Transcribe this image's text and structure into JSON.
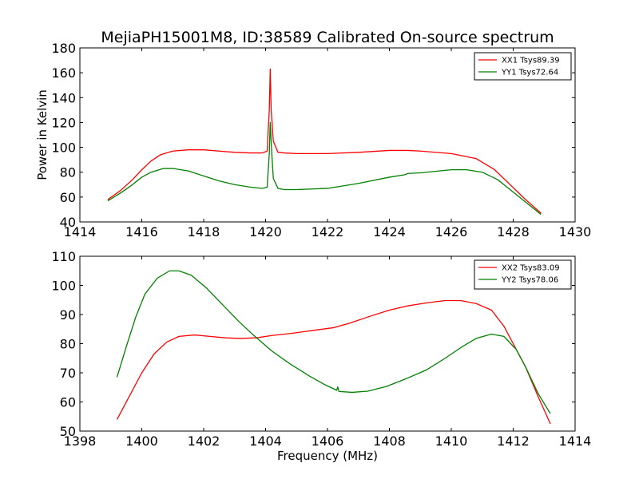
{
  "chart_data": [
    {
      "type": "line",
      "title": "MejiaPH15001M8, ID:38589 Calibrated On-source spectrum",
      "xlabel": "",
      "ylabel": "Power in Kelvin",
      "xlim": [
        1414,
        1430
      ],
      "ylim": [
        40,
        180
      ],
      "xticks": [
        "1414",
        "1416",
        "1418",
        "1420",
        "1422",
        "1424",
        "1426",
        "1428",
        "1430"
      ],
      "yticks": [
        "40",
        "60",
        "80",
        "100",
        "120",
        "140",
        "160",
        "180"
      ],
      "grid": false,
      "legend_position": "top-right",
      "series": [
        {
          "name": "XX1 Tsys89.39",
          "color": "#ff0000",
          "points": [
            [
              1414.9,
              58
            ],
            [
              1415.3,
              65
            ],
            [
              1415.7,
              74
            ],
            [
              1416.0,
              82
            ],
            [
              1416.3,
              89
            ],
            [
              1416.6,
              94
            ],
            [
              1417.0,
              97
            ],
            [
              1417.5,
              98
            ],
            [
              1418.0,
              98
            ],
            [
              1418.5,
              97
            ],
            [
              1419.0,
              96
            ],
            [
              1419.5,
              95.5
            ],
            [
              1419.9,
              95.5
            ],
            [
              1420.05,
              97
            ],
            [
              1420.12,
              130
            ],
            [
              1420.15,
              163
            ],
            [
              1420.18,
              130
            ],
            [
              1420.25,
              105
            ],
            [
              1420.4,
              96
            ],
            [
              1420.6,
              95.5
            ],
            [
              1421.0,
              95
            ],
            [
              1422.0,
              95
            ],
            [
              1423.0,
              96
            ],
            [
              1424.0,
              97.5
            ],
            [
              1424.6,
              97.5
            ],
            [
              1425.0,
              97
            ],
            [
              1426.0,
              95
            ],
            [
              1426.8,
              91
            ],
            [
              1427.4,
              82
            ],
            [
              1427.9,
              70
            ],
            [
              1428.4,
              58
            ],
            [
              1428.9,
              47
            ]
          ]
        },
        {
          "name": "YY1 Tsys72.64",
          "color": "#008000",
          "points": [
            [
              1414.9,
              57
            ],
            [
              1415.3,
              63
            ],
            [
              1415.7,
              70
            ],
            [
              1416.0,
              76
            ],
            [
              1416.3,
              80
            ],
            [
              1416.7,
              83
            ],
            [
              1417.0,
              83
            ],
            [
              1417.5,
              81
            ],
            [
              1418.0,
              77
            ],
            [
              1418.5,
              73
            ],
            [
              1419.0,
              70
            ],
            [
              1419.5,
              68
            ],
            [
              1419.9,
              67
            ],
            [
              1420.05,
              68
            ],
            [
              1420.12,
              95
            ],
            [
              1420.15,
              120
            ],
            [
              1420.2,
              95
            ],
            [
              1420.25,
              75
            ],
            [
              1420.4,
              67
            ],
            [
              1420.6,
              66
            ],
            [
              1421.0,
              66
            ],
            [
              1422.0,
              67
            ],
            [
              1423.0,
              71
            ],
            [
              1424.0,
              76
            ],
            [
              1424.5,
              78
            ],
            [
              1424.6,
              79
            ],
            [
              1425.0,
              79.5
            ],
            [
              1426.0,
              82
            ],
            [
              1426.5,
              82
            ],
            [
              1427.0,
              80
            ],
            [
              1427.5,
              74
            ],
            [
              1428.0,
              64
            ],
            [
              1428.5,
              54
            ],
            [
              1428.9,
              46
            ]
          ]
        }
      ]
    },
    {
      "type": "line",
      "title": "",
      "xlabel": "Frequency (MHz)",
      "ylabel": "",
      "xlim": [
        1398,
        1414
      ],
      "ylim": [
        50,
        110
      ],
      "xticks": [
        "1398",
        "1400",
        "1402",
        "1404",
        "1406",
        "1408",
        "1410",
        "1412",
        "1414"
      ],
      "yticks": [
        "50",
        "60",
        "70",
        "80",
        "90",
        "100",
        "110"
      ],
      "grid": false,
      "legend_position": "top-right",
      "series": [
        {
          "name": "XX2 Tsys83.09",
          "color": "#ff0000",
          "points": [
            [
              1399.2,
              54
            ],
            [
              1399.6,
              62
            ],
            [
              1400.0,
              70
            ],
            [
              1400.4,
              76.5
            ],
            [
              1400.8,
              80.5
            ],
            [
              1401.2,
              82.5
            ],
            [
              1401.7,
              83
            ],
            [
              1402.2,
              82.5
            ],
            [
              1402.7,
              82
            ],
            [
              1403.2,
              81.8
            ],
            [
              1403.7,
              82
            ],
            [
              1404.2,
              82.8
            ],
            [
              1404.8,
              83.5
            ],
            [
              1405.5,
              84.5
            ],
            [
              1406.2,
              85.5
            ],
            [
              1406.7,
              87
            ],
            [
              1407.4,
              89.5
            ],
            [
              1408.0,
              91.5
            ],
            [
              1408.6,
              93
            ],
            [
              1409.2,
              94
            ],
            [
              1409.8,
              94.8
            ],
            [
              1410.3,
              94.8
            ],
            [
              1410.8,
              93.8
            ],
            [
              1411.3,
              91.5
            ],
            [
              1411.7,
              86
            ],
            [
              1412.0,
              80
            ],
            [
              1412.4,
              72
            ],
            [
              1412.8,
              62
            ],
            [
              1413.2,
              52.5
            ]
          ]
        },
        {
          "name": "YY2 Tsys78.06",
          "color": "#008000",
          "points": [
            [
              1399.2,
              68.5
            ],
            [
              1399.5,
              79
            ],
            [
              1399.8,
              89
            ],
            [
              1400.1,
              97
            ],
            [
              1400.5,
              102.5
            ],
            [
              1400.9,
              105
            ],
            [
              1401.2,
              105
            ],
            [
              1401.6,
              103.5
            ],
            [
              1402.1,
              99
            ],
            [
              1402.6,
              93.5
            ],
            [
              1403.1,
              88
            ],
            [
              1403.6,
              83
            ],
            [
              1404.2,
              77.5
            ],
            [
              1404.8,
              73
            ],
            [
              1405.4,
              69
            ],
            [
              1405.9,
              66
            ],
            [
              1406.3,
              64
            ],
            [
              1406.33,
              65.2
            ],
            [
              1406.37,
              63.6
            ],
            [
              1406.8,
              63.3
            ],
            [
              1407.3,
              63.7
            ],
            [
              1407.9,
              65.3
            ],
            [
              1408.5,
              67.8
            ],
            [
              1409.2,
              71
            ],
            [
              1409.8,
              75
            ],
            [
              1410.3,
              78.6
            ],
            [
              1410.8,
              81.8
            ],
            [
              1411.3,
              83.3
            ],
            [
              1411.7,
              82.5
            ],
            [
              1412.1,
              78
            ],
            [
              1412.4,
              72
            ],
            [
              1412.8,
              63
            ],
            [
              1413.2,
              56
            ]
          ]
        }
      ]
    }
  ]
}
